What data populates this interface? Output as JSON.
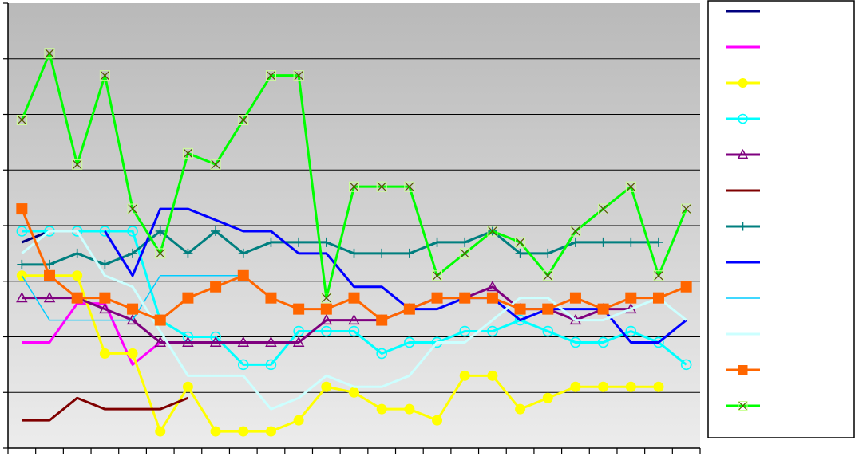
{
  "chart_data": {
    "type": "line",
    "title": "",
    "xlabel": "",
    "ylabel": "",
    "x": [
      1,
      2,
      3,
      4,
      5,
      6,
      7,
      8,
      9,
      10,
      11,
      12,
      13,
      14,
      15,
      16,
      17,
      18,
      19,
      20,
      21,
      22,
      23,
      24,
      25
    ],
    "ylim": [
      0,
      8
    ],
    "grid": true,
    "legend_position": "right",
    "series": [
      {
        "color": "#00007f",
        "marker": "none",
        "width": 3,
        "values": [
          3.7,
          3.9,
          3.9,
          3.9,
          null,
          null,
          null,
          null,
          null,
          null,
          null,
          null,
          null,
          null,
          null,
          null,
          null,
          null,
          null,
          null,
          null,
          null,
          null,
          null,
          null
        ]
      },
      {
        "color": "#ff00ff",
        "marker": "none",
        "width": 3,
        "values": [
          1.9,
          1.9,
          2.6,
          2.6,
          1.5,
          1.9,
          null,
          null,
          null,
          null,
          null,
          null,
          null,
          null,
          null,
          null,
          null,
          null,
          null,
          null,
          null,
          null,
          null,
          null,
          null
        ]
      },
      {
        "color": "#ffff00",
        "marker": "circle-filled",
        "width": 3,
        "values": [
          3.1,
          3.1,
          3.1,
          1.7,
          1.7,
          0.3,
          1.1,
          0.3,
          0.3,
          0.3,
          0.5,
          1.1,
          1.0,
          0.7,
          0.7,
          0.5,
          1.3,
          1.3,
          0.7,
          0.9,
          1.1,
          1.1,
          1.1,
          1.1,
          null
        ]
      },
      {
        "color": "#00ffff",
        "marker": "circle-open",
        "width": 3,
        "values": [
          3.9,
          3.9,
          3.9,
          3.9,
          3.9,
          2.3,
          2.0,
          2.0,
          1.5,
          1.5,
          2.1,
          2.1,
          2.1,
          1.7,
          1.9,
          1.9,
          2.1,
          2.1,
          2.3,
          2.1,
          1.9,
          1.9,
          2.1,
          1.9,
          1.5
        ]
      },
      {
        "color": "#7f007f",
        "marker": "triangle-open",
        "width": 3,
        "values": [
          2.7,
          2.7,
          2.7,
          2.5,
          2.3,
          1.9,
          1.9,
          1.9,
          1.9,
          1.9,
          1.9,
          2.3,
          2.3,
          2.3,
          2.5,
          2.7,
          2.7,
          2.9,
          2.5,
          2.5,
          2.3,
          2.5,
          2.5,
          null,
          null
        ]
      },
      {
        "color": "#7f0000",
        "marker": "none",
        "width": 3,
        "values": [
          0.5,
          0.5,
          0.9,
          0.7,
          0.7,
          0.7,
          0.9,
          null,
          null,
          null,
          null,
          null,
          null,
          null,
          null,
          null,
          null,
          null,
          null,
          null,
          null,
          null,
          null,
          null,
          null
        ]
      },
      {
        "color": "#007f7f",
        "marker": "plus",
        "width": 3,
        "values": [
          3.3,
          3.3,
          3.5,
          3.3,
          3.5,
          3.9,
          3.5,
          3.9,
          3.5,
          3.7,
          3.7,
          3.7,
          3.5,
          3.5,
          3.5,
          3.7,
          3.7,
          3.9,
          3.5,
          3.5,
          3.7,
          3.7,
          3.7,
          3.7,
          null
        ]
      },
      {
        "color": "#0000ff",
        "marker": "none",
        "width": 3,
        "values": [
          null,
          null,
          null,
          3.9,
          3.1,
          4.3,
          4.3,
          4.1,
          3.9,
          3.9,
          3.5,
          3.5,
          2.9,
          2.9,
          2.5,
          2.5,
          2.7,
          2.7,
          2.3,
          2.5,
          2.5,
          2.5,
          1.9,
          1.9,
          2.3
        ]
      },
      {
        "color": "#00ccff",
        "marker": "none",
        "width": 1.5,
        "values": [
          3.1,
          2.3,
          2.3,
          2.3,
          2.3,
          3.1,
          3.1,
          3.1,
          3.1,
          null,
          null,
          null,
          null,
          null,
          null,
          null,
          null,
          null,
          null,
          null,
          null,
          null,
          null,
          null,
          null
        ]
      },
      {
        "color": "#ccffff",
        "marker": "none",
        "width": 3,
        "values": [
          3.5,
          3.9,
          3.9,
          3.1,
          2.9,
          2.1,
          1.3,
          1.3,
          1.3,
          0.7,
          0.9,
          1.3,
          1.1,
          1.1,
          1.3,
          1.9,
          1.9,
          2.3,
          2.7,
          2.7,
          2.3,
          2.3,
          2.5,
          2.7,
          2.3
        ]
      },
      {
        "color": "#ff6600",
        "marker": "square-filled",
        "width": 3,
        "values": [
          4.3,
          3.1,
          2.7,
          2.7,
          2.5,
          2.3,
          2.7,
          2.9,
          3.1,
          2.7,
          2.5,
          2.5,
          2.7,
          2.3,
          2.5,
          2.7,
          2.7,
          2.7,
          2.5,
          2.5,
          2.7,
          2.5,
          2.7,
          2.7,
          2.9
        ]
      },
      {
        "color": "#00ff00",
        "marker": "x-box",
        "width": 3,
        "values": [
          5.9,
          7.1,
          5.1,
          6.7,
          4.3,
          3.5,
          5.3,
          5.1,
          5.9,
          6.7,
          6.7,
          2.7,
          4.7,
          4.7,
          4.7,
          3.1,
          3.5,
          3.9,
          3.7,
          3.1,
          3.9,
          4.3,
          4.7,
          3.1,
          4.3
        ]
      }
    ]
  }
}
